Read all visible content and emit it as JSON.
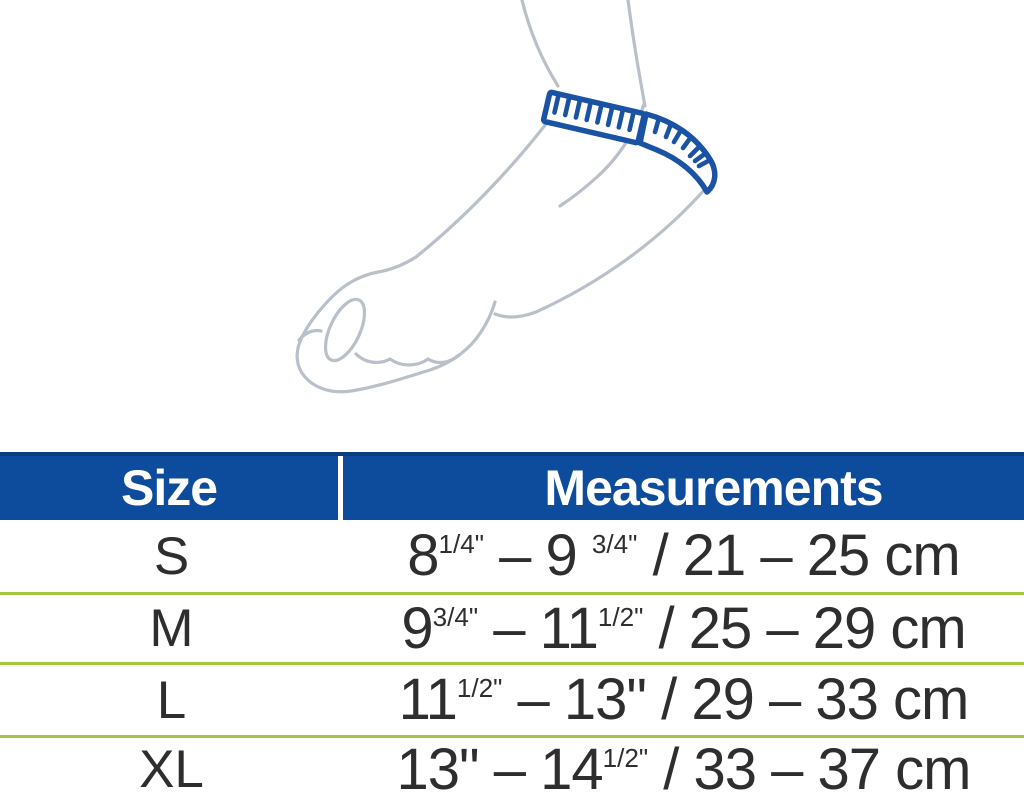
{
  "colors": {
    "header_blue": "#0d4c9d",
    "header_blue_dark": "#0b3d7e",
    "accent_green": "#a3c83e",
    "tape_blue": "#1a53a4",
    "arm_gray": "#b9c0ca",
    "text_dark": "#2e2e2e",
    "header_text": "#ffffff"
  },
  "illustration": {
    "icon": "arm-with-measuring-tape-illustration"
  },
  "table": {
    "headers": [
      {
        "label": "Size"
      },
      {
        "label": "Measurements"
      }
    ],
    "rows": [
      {
        "size": "S",
        "measurement_text": "8 1/4\" – 9 3/4\" / 21 – 25 cm",
        "measurement_segments": [
          {
            "t": "8"
          },
          {
            "t": "1/4\"",
            "sup": true
          },
          {
            "t": " – 9 "
          },
          {
            "t": "3/4\"",
            "sup": true
          },
          {
            "t": " / 21 – 25 cm"
          }
        ]
      },
      {
        "size": "M",
        "measurement_text": "9 3/4\" – 11 1/2\" / 25 – 29 cm",
        "measurement_segments": [
          {
            "t": "9"
          },
          {
            "t": "3/4\"",
            "sup": true
          },
          {
            "t": " – 11"
          },
          {
            "t": "1/2\"",
            "sup": true
          },
          {
            "t": " / 25 – 29 cm"
          }
        ]
      },
      {
        "size": "L",
        "measurement_text": "11 1/2\" – 13\" / 29 – 33 cm",
        "measurement_segments": [
          {
            "t": "11"
          },
          {
            "t": "1/2\"",
            "sup": true
          },
          {
            "t": " – 13\" / 29 – 33 cm"
          }
        ]
      },
      {
        "size": "XL",
        "measurement_text": "13\" – 14 1/2\" / 33 – 37 cm",
        "measurement_segments": [
          {
            "t": "13\" – 14"
          },
          {
            "t": "1/2\"",
            "sup": true
          },
          {
            "t": " / 33 – 37 cm"
          }
        ]
      }
    ]
  }
}
